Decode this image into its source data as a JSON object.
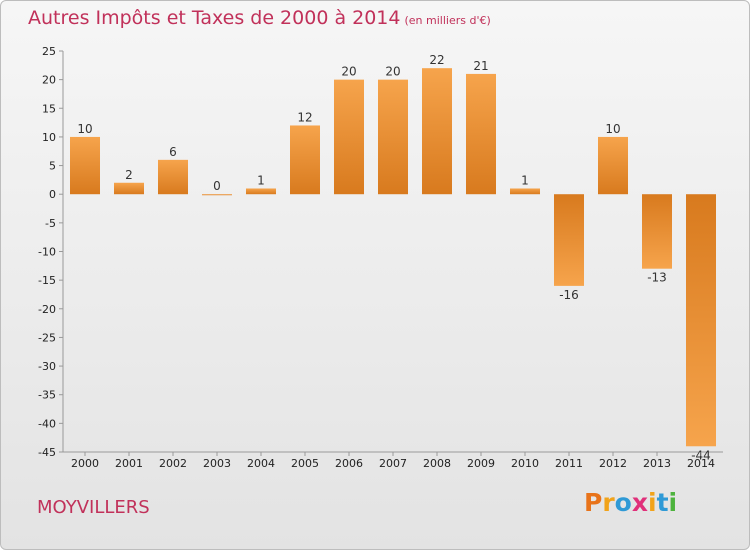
{
  "title": "Autres Impôts et Taxes de 2000 à 2014",
  "subtitle": "(en milliers d'€)",
  "commune": "MOYVILLERS",
  "logo": {
    "text": "Proxiti",
    "letters": [
      "P",
      "r",
      "o",
      "x",
      "i",
      "t",
      "i"
    ],
    "colors": [
      "#e8731a",
      "#f1a31a",
      "#2f9ad6",
      "#e0307a",
      "#f1a31a",
      "#2f9ad6",
      "#4db33d"
    ]
  },
  "colors": {
    "bar_light": "#f6a44c",
    "bar_dark": "#d87a1e",
    "title": "#c1315a",
    "grid": "#cccccc"
  },
  "chart_data": {
    "type": "bar",
    "title": "Autres Impôts et Taxes de 2000 à 2014",
    "subtitle": "(en milliers d'€)",
    "categories": [
      "2000",
      "2001",
      "2002",
      "2003",
      "2004",
      "2005",
      "2006",
      "2007",
      "2008",
      "2009",
      "2010",
      "2011",
      "2012",
      "2013",
      "2014"
    ],
    "values": [
      10,
      2,
      6,
      0,
      1,
      12,
      20,
      20,
      22,
      21,
      1,
      -16,
      10,
      -13,
      -44
    ],
    "ylim": [
      -45,
      25
    ],
    "yticks": [
      25,
      20,
      15,
      10,
      5,
      0,
      -5,
      -10,
      -15,
      -20,
      -25,
      -30,
      -35,
      -40,
      -45
    ],
    "grid": false
  }
}
